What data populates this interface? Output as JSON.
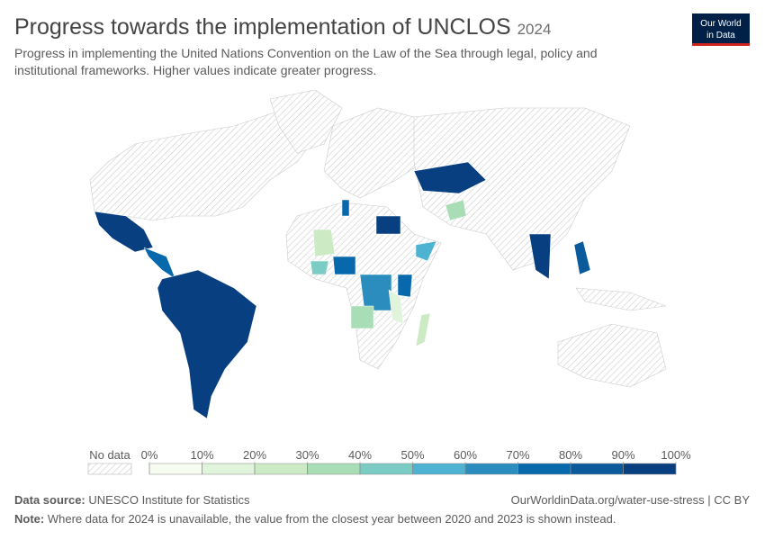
{
  "header": {
    "title": "Progress towards the implementation of UNCLOS",
    "year": "2024",
    "subtitle": "Progress in implementing the United Nations Convention on the Law of the Sea through legal, policy and institutional frameworks. Higher values indicate greater progress.",
    "logo": [
      "Our World",
      "in Data"
    ]
  },
  "legend": {
    "no_data_label": "No data",
    "ticks": [
      {
        "value": 0,
        "label": "0%"
      },
      {
        "value": 10,
        "label": "10%"
      },
      {
        "value": 20,
        "label": "20%"
      },
      {
        "value": 30,
        "label": "30%"
      },
      {
        "value": 40,
        "label": "40%"
      },
      {
        "value": 50,
        "label": "50%"
      },
      {
        "value": 60,
        "label": "60%"
      },
      {
        "value": 70,
        "label": "70%"
      },
      {
        "value": 80,
        "label": "80%"
      },
      {
        "value": 90,
        "label": "90%"
      },
      {
        "value": 100,
        "label": "100%"
      }
    ],
    "colors": [
      "#f7fcf0",
      "#e0f3db",
      "#ccebc5",
      "#a8ddb5",
      "#7bccc4",
      "#4eb3d3",
      "#2b8cbe",
      "#0868ac",
      "#0a5a9c",
      "#083f80"
    ]
  },
  "footer": {
    "source_label": "Data source:",
    "source": "UNESCO Institute for Statistics",
    "url": "OurWorldinData.org/water-use-stress | CC BY",
    "note_label": "Note:",
    "note": "Where data for 2024 is unavailable, the value from the closest year between 2020 and 2023 is shown instead."
  }
}
